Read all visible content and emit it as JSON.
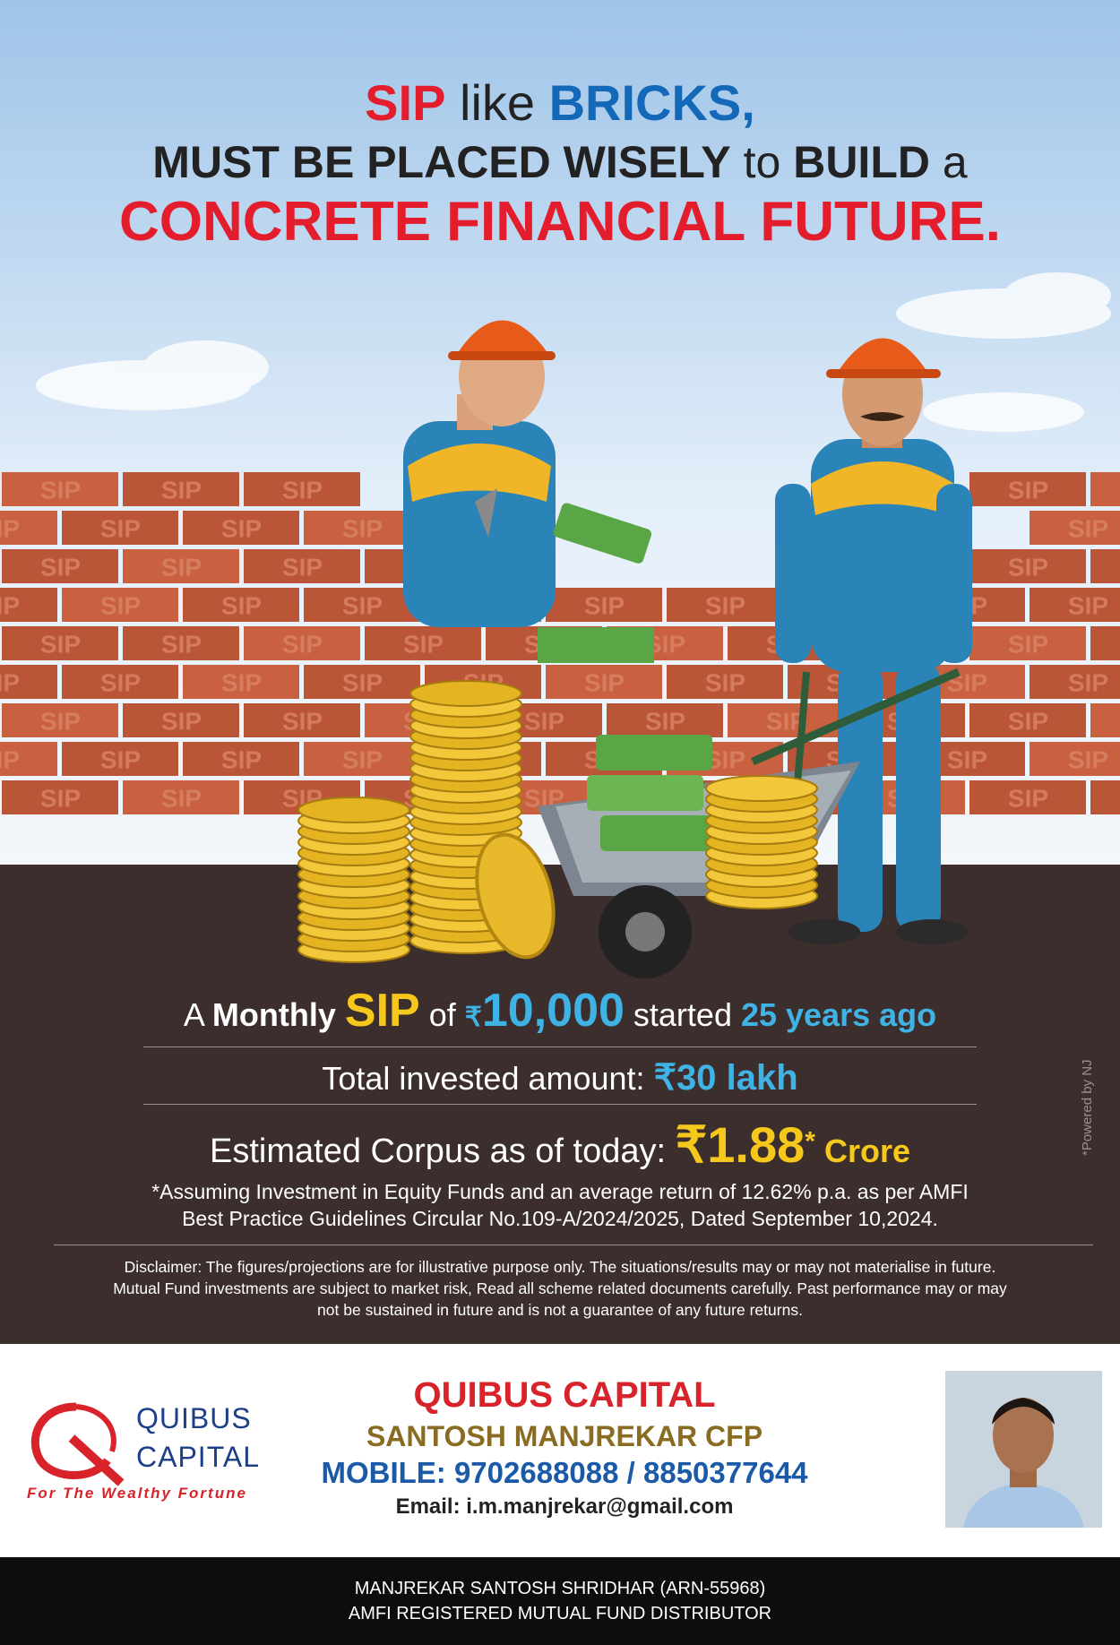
{
  "headline": {
    "l1_a": "SIP",
    "l1_b": " like ",
    "l1_c": "BRICKS,",
    "l2_a": "MUST BE PLACED WISELY",
    "l2_b": " to ",
    "l2_c": "BUILD",
    "l2_d": " a",
    "l3": "CONCRETE FINANCIAL FUTURE."
  },
  "brick_text": "SIP",
  "stats": {
    "monthly": {
      "p1": "A ",
      "p2": "Monthly",
      "p3": " ",
      "p4": "SIP",
      "p5": " of ",
      "p6": "₹",
      "p7": "10,000",
      "p8": " started ",
      "p9": "25 years ago"
    },
    "invested": {
      "label": "Total invested amount: ",
      "value": "₹30 lakh"
    },
    "corpus": {
      "label": "Estimated Corpus as of today: ",
      "value": "₹1.88",
      "star": "*",
      "unit": " Crore"
    }
  },
  "assumption": {
    "line1": "*Assuming Investment in Equity Funds and an average return of 12.62% p.a. as per AMFI",
    "line2": "Best Practice  Guidelines Circular No.109-A/2024/2025, Dated September 10,2024."
  },
  "disclaimer": {
    "line1": "Disclaimer: The figures/projections are for illustrative purpose only. The situations/results may or may not materialise in future.",
    "line2": "Mutual Fund investments are subject to market risk, Read all scheme related documents carefully. Past performance may or may",
    "line3": "not be sustained in future and is not a guarantee of any future returns."
  },
  "powered_by": "*Powered by NJ",
  "logo": {
    "line1": "QUIBUS",
    "line2": "CAPITAL",
    "tagline": "For The Wealthy Fortune"
  },
  "contact": {
    "company": "QUIBUS CAPITAL",
    "name": "SANTOSH MANJREKAR CFP",
    "mobile": "MOBILE: 9702688088 / 8850377644",
    "email": "Email: i.m.manjrekar@gmail.com"
  },
  "footer": {
    "line1": "MANJREKAR SANTOSH SHRIDHAR (ARN-55968)",
    "line2": "AMFI REGISTERED MUTUAL FUND DISTRIBUTOR"
  },
  "colors": {
    "red": "#e41d2d",
    "blue": "#1468b8",
    "brick": "#c0583c",
    "panel": "#3c2e2c",
    "gold": "#f7c81c",
    "cyan": "#40b3e6"
  }
}
